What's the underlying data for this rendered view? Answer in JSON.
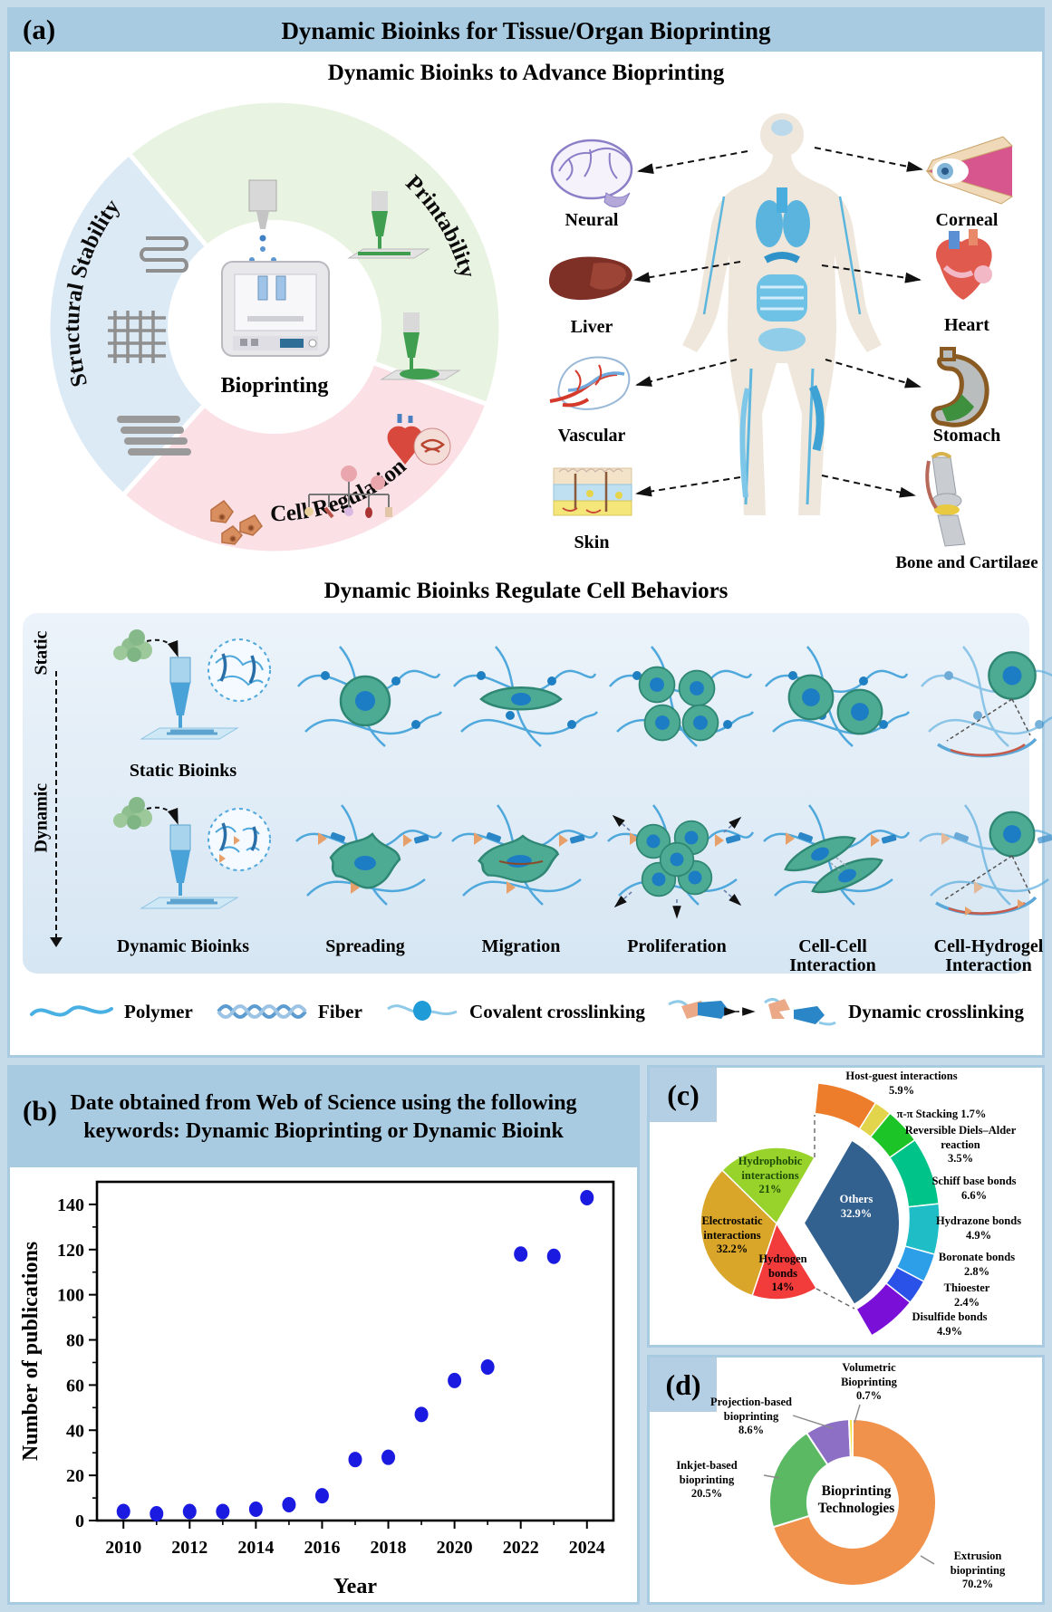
{
  "page": {
    "background": "#c6dbea",
    "panel_border": "#a9cbe1",
    "header_band": "#a8cbe2"
  },
  "panel_a": {
    "tag": "(a)",
    "title": "Dynamic Bioinks for Tissue/Organ Bioprinting",
    "subtitle": "Dynamic Bioinks to Advance Bioprinting",
    "wheel": {
      "center_label": "Bioprinting",
      "sectors": [
        {
          "label": "Printability",
          "color": "#e9f3e2"
        },
        {
          "label": "Cell Regulation",
          "color": "#fbe1e5"
        },
        {
          "label": "Structural Stability",
          "color": "#dceaf6"
        }
      ]
    },
    "organs": [
      {
        "name": "Neural"
      },
      {
        "name": "Corneal"
      },
      {
        "name": "Liver"
      },
      {
        "name": "Heart"
      },
      {
        "name": "Vascular"
      },
      {
        "name": "Stomach"
      },
      {
        "name": "Skin"
      },
      {
        "name": "Bone and Cartilage"
      }
    ],
    "behaviors": {
      "title": "Dynamic Bioinks Regulate Cell Behaviors",
      "row_static": "Static",
      "row_dynamic": "Dynamic",
      "static_ink": "Static Bioinks",
      "dynamic_ink": "Dynamic Bioinks",
      "columns": [
        "Spreading",
        "Migration",
        "Proliferation",
        "Cell-Cell Interaction",
        "Cell-Hydrogel Interaction"
      ]
    },
    "legend": [
      {
        "label": "Polymer"
      },
      {
        "label": "Fiber"
      },
      {
        "label": "Covalent crosslinking"
      },
      {
        "label": "Dynamic crosslinking"
      }
    ]
  },
  "panel_b": {
    "tag": "(b)",
    "title_line1": "Date obtained from Web of Science using the following",
    "title_line2": "keywords: Dynamic Bioprinting or Dynamic Bioink"
  },
  "panel_c": {
    "tag": "(c)"
  },
  "panel_d": {
    "tag": "(d)"
  },
  "chart_data": [
    {
      "id": "publications_scatter",
      "type": "scatter",
      "title": "Date obtained from Web of Science using the following keywords: Dynamic Bioprinting or Dynamic Bioink",
      "xlabel": "Year",
      "ylabel": "Number of publications",
      "x": [
        2010,
        2011,
        2012,
        2013,
        2014,
        2015,
        2016,
        2017,
        2018,
        2019,
        2020,
        2021,
        2022,
        2023,
        2024
      ],
      "y": [
        4,
        3,
        4,
        4,
        5,
        7,
        11,
        27,
        28,
        47,
        62,
        68,
        118,
        117,
        143
      ],
      "xlim": [
        2009.2,
        2024.8
      ],
      "ylim": [
        0,
        150
      ],
      "xticks": [
        2010,
        2012,
        2014,
        2016,
        2018,
        2020,
        2022,
        2024
      ],
      "yticks": [
        0,
        20,
        40,
        60,
        80,
        100,
        120,
        140
      ],
      "marker_color": "#1a1ae0",
      "grid": false,
      "legend_position": "none"
    },
    {
      "id": "dynamic_crosslinking_pie",
      "type": "pie",
      "slices": [
        {
          "label": "Others",
          "value": 32.9,
          "pct_label": "32.9%",
          "color": "#33618f",
          "exploded": true
        },
        {
          "label": "Hydrogen bonds",
          "value": 14,
          "pct_label": "14%",
          "color": "#f23b3b"
        },
        {
          "label": "Electrostatic interactions",
          "value": 32.2,
          "pct_label": "32.2%",
          "color": "#d9a62a"
        },
        {
          "label": "Hydrophobic interactions",
          "value": 21,
          "pct_label": "21%",
          "color": "#97d32b"
        }
      ],
      "others_breakdown": [
        {
          "label": "Host-guest interactions",
          "value": 5.9,
          "pct_label": "5.9%",
          "color": "#ed7d2b"
        },
        {
          "label": "π-π Stacking",
          "value": 1.7,
          "pct_label": "1.7%",
          "color": "#e3d54b"
        },
        {
          "label": "Reversible Diels–Alder reaction",
          "value": 3.5,
          "pct_label": "3.5%",
          "color": "#1dc427"
        },
        {
          "label": "Schiff base bonds",
          "value": 6.6,
          "pct_label": "6.6%",
          "color": "#00c389"
        },
        {
          "label": "Hydrazone bonds",
          "value": 4.9,
          "pct_label": "4.9%",
          "color": "#1fbec6"
        },
        {
          "label": "Boronate bonds",
          "value": 2.8,
          "pct_label": "2.8%",
          "color": "#2d9fe8"
        },
        {
          "label": "Thioester",
          "value": 2.4,
          "pct_label": "2.4%",
          "color": "#2a52e8"
        },
        {
          "label": "Disulfide bonds",
          "value": 4.9,
          "pct_label": "4.9%",
          "color": "#7a10d8"
        }
      ]
    },
    {
      "id": "bioprinting_technologies_donut",
      "type": "pie",
      "center_label": "Bioprinting Technologies",
      "slices": [
        {
          "label": "Extrusion bioprinting",
          "value": 70.2,
          "pct_label": "70.2%",
          "color": "#f0914c"
        },
        {
          "label": "Inkjet-based bioprinting",
          "value": 20.5,
          "pct_label": "20.5%",
          "color": "#5bb964"
        },
        {
          "label": "Projection-based bioprinting",
          "value": 8.6,
          "pct_label": "8.6%",
          "color": "#8d70c5"
        },
        {
          "label": "Volumetric Bioprinting",
          "value": 0.7,
          "pct_label": "0.7%",
          "color": "#f2e33c"
        }
      ]
    }
  ]
}
